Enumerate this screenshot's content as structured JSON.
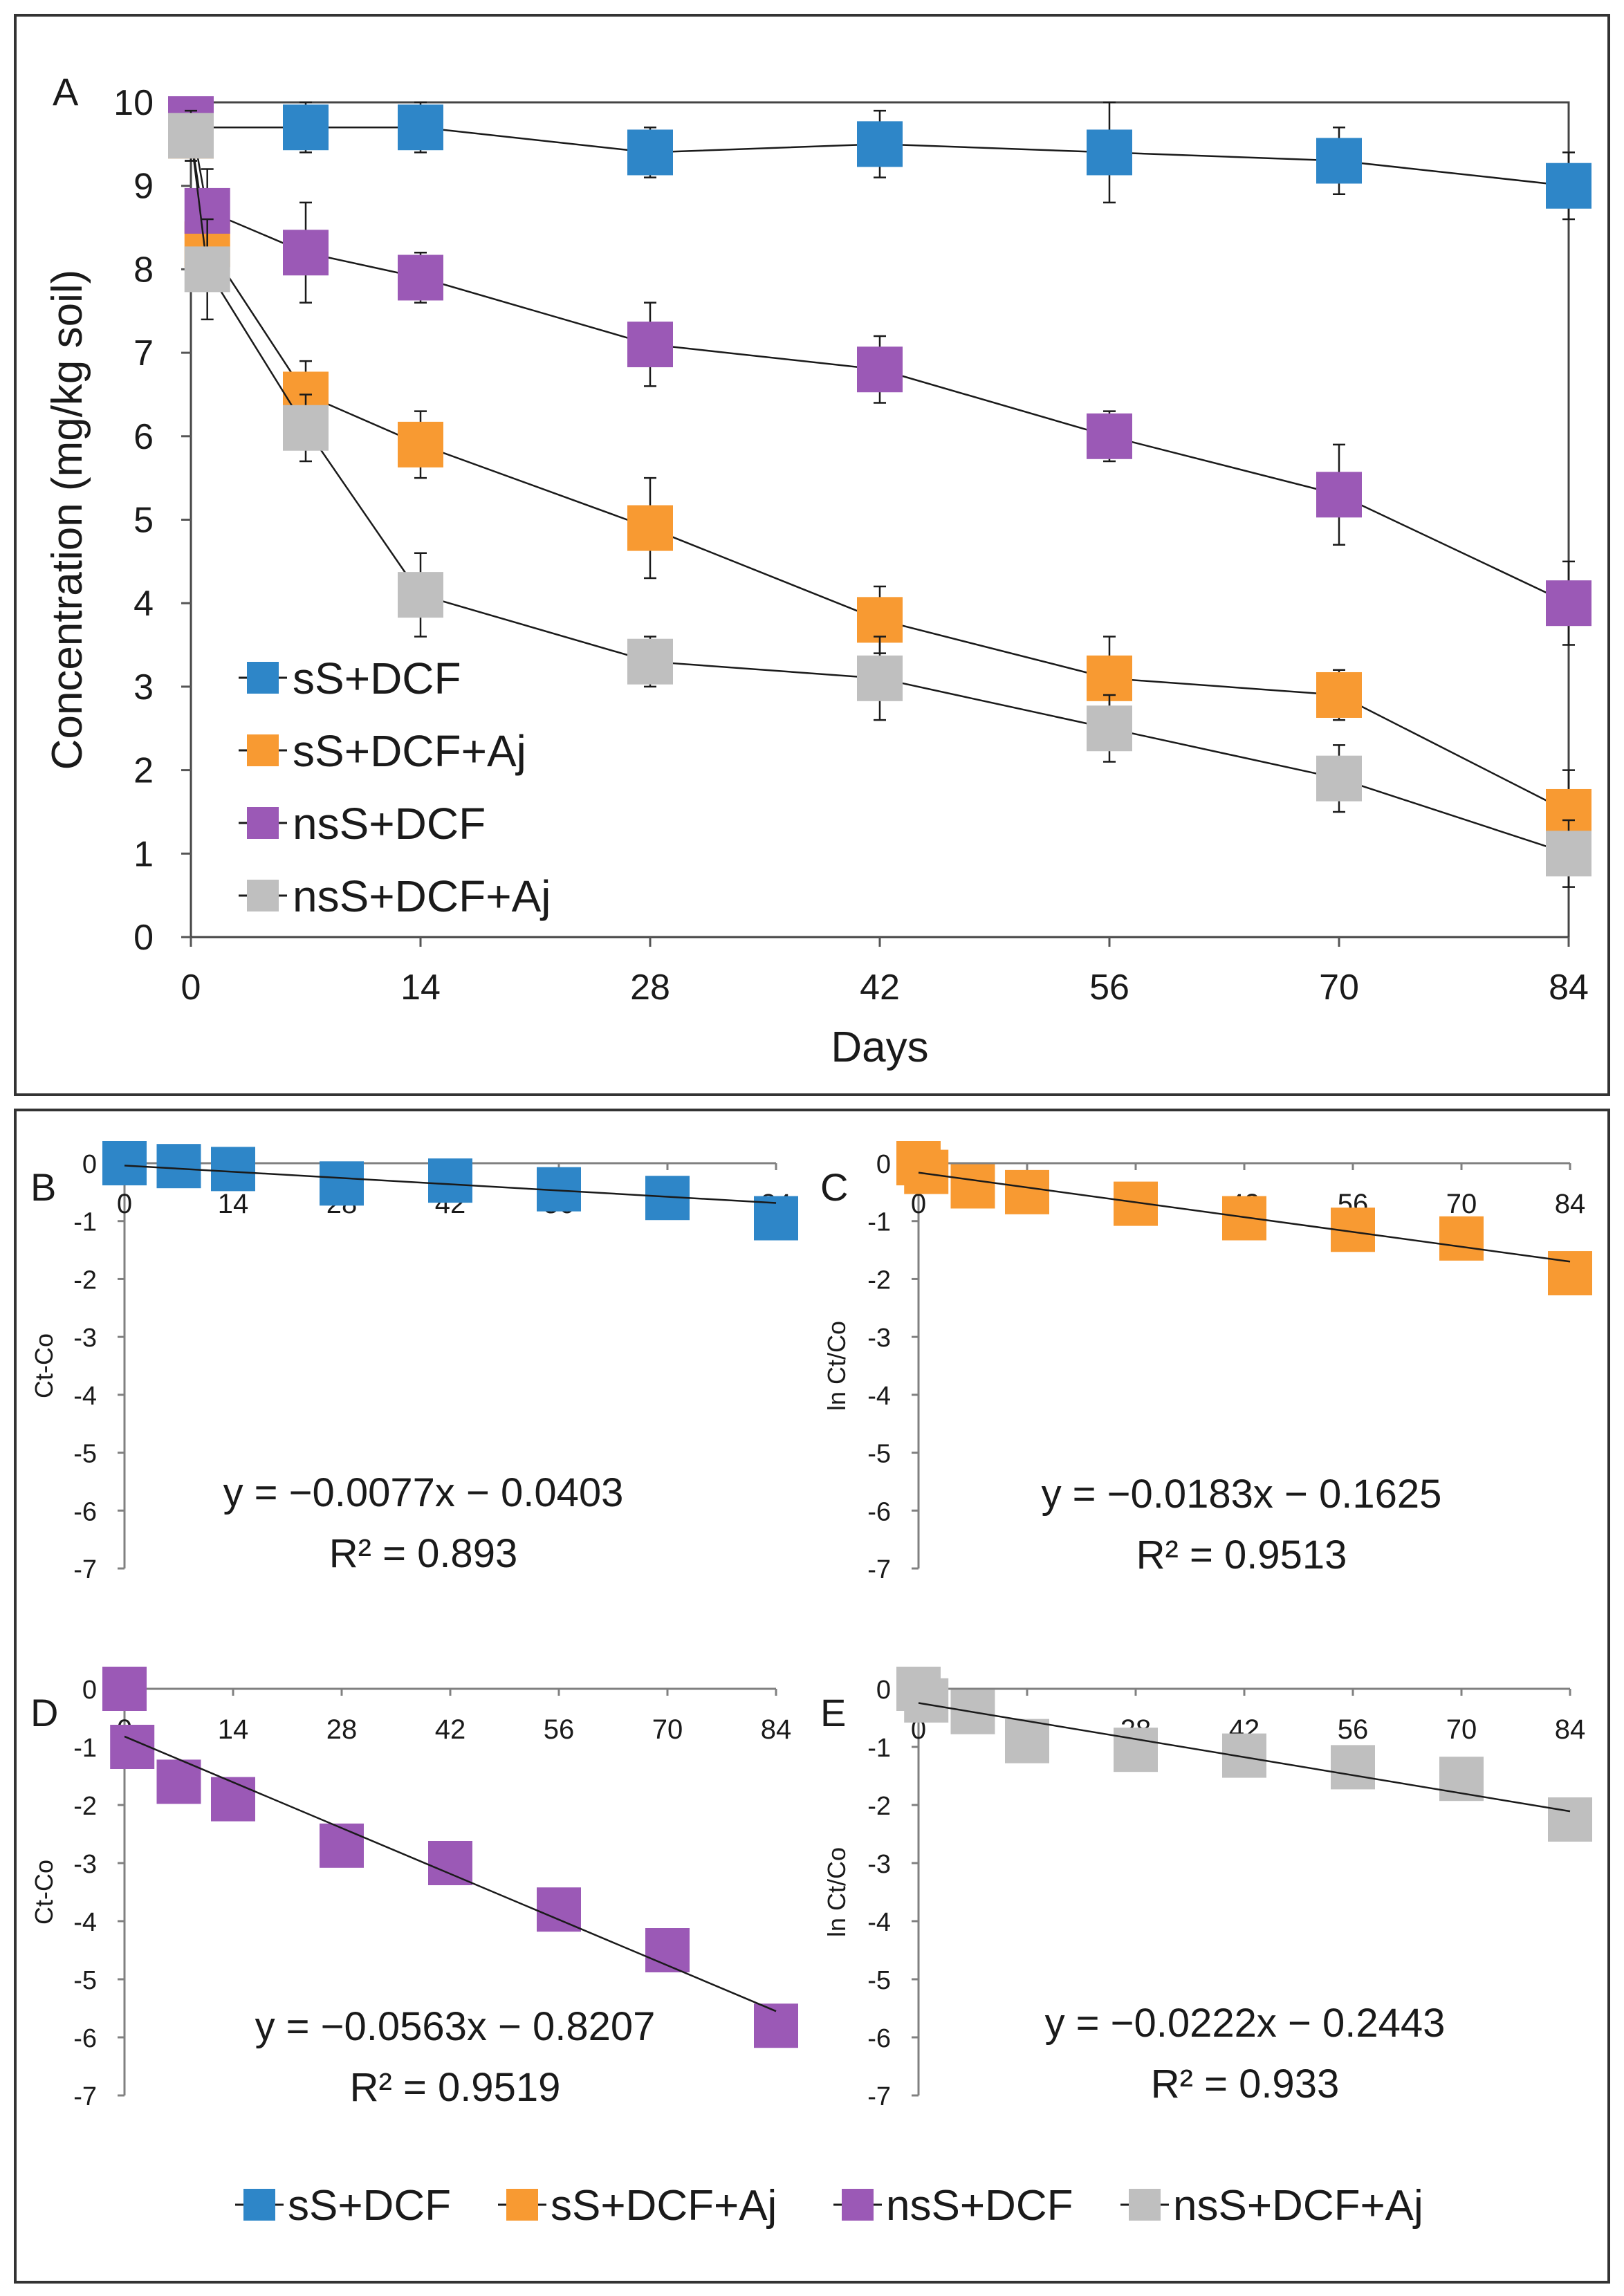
{
  "colors": {
    "sS_DCF": "#2e86c8",
    "sS_DCF_Aj": "#f89a32",
    "nsS_DCF": "#9b59b6",
    "nsS_DCF_Aj": "#bfbfbf",
    "axis": "#808080",
    "line": "#1a1a1a",
    "text": "#1a1a1a"
  },
  "bottom_legend": [
    "sS+DCF",
    "sS+DCF+Aj",
    "nsS+DCF",
    "nsS+DCF+Aj"
  ],
  "chart_data": [
    {
      "id": "A",
      "panel_label": "A",
      "type": "line",
      "title": "",
      "xlabel": "Days",
      "ylabel": "Concentration (mg/kg soil)",
      "xlim": [
        0,
        84
      ],
      "ylim": [
        0,
        10
      ],
      "x_ticks": [
        "0",
        "14",
        "28",
        "42",
        "56",
        "70",
        "84"
      ],
      "y_ticks": [
        "0",
        "1",
        "2",
        "3",
        "4",
        "5",
        "6",
        "7",
        "8",
        "9",
        "10"
      ],
      "legend": [
        "sS+DCF",
        "sS+DCF+Aj",
        "nsS+DCF",
        "nsS+DCF+Aj"
      ],
      "legend_position": "bottom-left",
      "series": [
        {
          "name": "sS+DCF",
          "color_key": "sS_DCF",
          "x": [
            0,
            7,
            14,
            28,
            42,
            56,
            70,
            84
          ],
          "values": [
            9.7,
            9.7,
            9.7,
            9.4,
            9.5,
            9.4,
            9.3,
            9.0
          ],
          "errors": [
            0.2,
            0.3,
            0.3,
            0.3,
            0.4,
            0.6,
            0.4,
            0.4
          ]
        },
        {
          "name": "sS+DCF+Aj",
          "color_key": "sS_DCF_Aj",
          "x": [
            0,
            1,
            7,
            14,
            28,
            42,
            56,
            70,
            84
          ],
          "values": [
            9.6,
            8.3,
            6.5,
            5.9,
            4.9,
            3.8,
            3.1,
            2.9,
            1.5
          ],
          "errors": [
            0.3,
            0.5,
            0.4,
            0.4,
            0.6,
            0.4,
            0.5,
            0.3,
            0.5
          ]
        },
        {
          "name": "nsS+DCF",
          "color_key": "nsS_DCF",
          "x": [
            0,
            1,
            7,
            14,
            28,
            42,
            56,
            70,
            84
          ],
          "values": [
            9.8,
            8.7,
            8.2,
            7.9,
            7.1,
            6.8,
            6.0,
            5.3,
            4.0
          ],
          "errors": [
            0.2,
            0.5,
            0.6,
            0.3,
            0.5,
            0.4,
            0.3,
            0.6,
            0.5
          ]
        },
        {
          "name": "nsS+DCF+Aj",
          "color_key": "nsS_DCF_Aj",
          "x": [
            0,
            1,
            7,
            14,
            28,
            42,
            56,
            70,
            84
          ],
          "values": [
            9.6,
            8.0,
            6.1,
            4.1,
            3.3,
            3.1,
            2.5,
            1.9,
            1.0
          ],
          "errors": [
            0.3,
            0.6,
            0.4,
            0.5,
            0.3,
            0.5,
            0.4,
            0.4,
            0.4
          ]
        }
      ]
    },
    {
      "id": "B",
      "panel_label": "B",
      "type": "scatter",
      "xlabel": "",
      "ylabel": "Ct-Co",
      "xlim": [
        0,
        84
      ],
      "ylim": [
        -7,
        0
      ],
      "x_ticks": [
        "0",
        "14",
        "28",
        "42",
        "56",
        "70",
        "84"
      ],
      "y_ticks": [
        "0",
        "-1",
        "-2",
        "-3",
        "-4",
        "-5",
        "-6",
        "-7"
      ],
      "series": [
        {
          "name": "sS+DCF",
          "color_key": "sS_DCF",
          "x": [
            0,
            7,
            14,
            28,
            42,
            56,
            70,
            84
          ],
          "values": [
            0.0,
            -0.05,
            -0.1,
            -0.35,
            -0.3,
            -0.45,
            -0.6,
            -0.95
          ]
        }
      ],
      "trendline": {
        "slope": -0.0077,
        "intercept": -0.0403
      },
      "equation": "y = −0.0077x − 0.0403",
      "r2": "R² = 0.893"
    },
    {
      "id": "C",
      "panel_label": "C",
      "type": "scatter",
      "xlabel": "",
      "ylabel": "ln Ct/Co",
      "xlim": [
        0,
        84
      ],
      "ylim": [
        -7,
        0
      ],
      "x_ticks": [
        "0",
        "14",
        "28",
        "42",
        "56",
        "70",
        "84"
      ],
      "y_ticks": [
        "0",
        "-1",
        "-2",
        "-3",
        "-4",
        "-5",
        "-6",
        "-7"
      ],
      "series": [
        {
          "name": "sS+DCF+Aj",
          "color_key": "sS_DCF_Aj",
          "x": [
            0,
            1,
            7,
            14,
            28,
            42,
            56,
            70,
            84
          ],
          "values": [
            0.0,
            -0.15,
            -0.4,
            -0.5,
            -0.7,
            -0.95,
            -1.15,
            -1.3,
            -1.9
          ]
        }
      ],
      "trendline": {
        "slope": -0.0183,
        "intercept": -0.1625
      },
      "equation": "y = −0.0183x − 0.1625",
      "r2": "R² = 0.9513"
    },
    {
      "id": "D",
      "panel_label": "D",
      "type": "scatter",
      "xlabel": "",
      "ylabel": "Ct-Co",
      "xlim": [
        0,
        84
      ],
      "ylim": [
        -7,
        0
      ],
      "x_ticks": [
        "0",
        "14",
        "28",
        "42",
        "56",
        "70",
        "84"
      ],
      "y_ticks": [
        "0",
        "-1",
        "-2",
        "-3",
        "-4",
        "-5",
        "-6",
        "-7"
      ],
      "series": [
        {
          "name": "nsS+DCF",
          "color_key": "nsS_DCF",
          "x": [
            0,
            1,
            7,
            14,
            28,
            42,
            56,
            70,
            84
          ],
          "values": [
            0.0,
            -1.0,
            -1.6,
            -1.9,
            -2.7,
            -3.0,
            -3.8,
            -4.5,
            -5.8
          ]
        }
      ],
      "trendline": {
        "slope": -0.0563,
        "intercept": -0.8207
      },
      "equation": "y = −0.0563x − 0.8207",
      "r2": "R² = 0.9519"
    },
    {
      "id": "E",
      "panel_label": "E",
      "type": "scatter",
      "xlabel": "",
      "ylabel": "ln Ct/Co",
      "xlim": [
        0,
        84
      ],
      "ylim": [
        -7,
        0
      ],
      "x_ticks": [
        "0",
        "14",
        "28",
        "42",
        "56",
        "70",
        "84"
      ],
      "y_ticks": [
        "0",
        "-1",
        "-2",
        "-3",
        "-4",
        "-5",
        "-6",
        "-7"
      ],
      "series": [
        {
          "name": "nsS+DCF+Aj",
          "color_key": "nsS_DCF_Aj",
          "x": [
            0,
            1,
            7,
            14,
            28,
            42,
            56,
            70,
            84
          ],
          "values": [
            0.0,
            -0.2,
            -0.4,
            -0.9,
            -1.05,
            -1.15,
            -1.35,
            -1.55,
            -2.25
          ]
        }
      ],
      "trendline": {
        "slope": -0.0222,
        "intercept": -0.2443
      },
      "equation": "y = −0.0222x − 0.2443",
      "r2": "R² = 0.933"
    }
  ]
}
